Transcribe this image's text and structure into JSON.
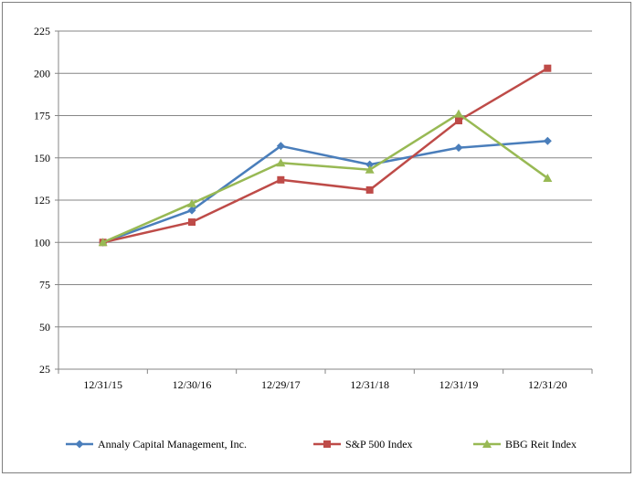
{
  "chart_data": {
    "type": "line",
    "title": "",
    "xlabel": "",
    "ylabel": "",
    "categories": [
      "12/31/15",
      "12/30/16",
      "12/29/17",
      "12/31/18",
      "12/31/19",
      "12/31/20"
    ],
    "ylim": [
      25,
      225
    ],
    "yticks": [
      25,
      50,
      75,
      100,
      125,
      150,
      175,
      200,
      225
    ],
    "grid": true,
    "legend_position": "bottom",
    "series": [
      {
        "name": "Annaly Capital Management, Inc.",
        "color": "#4a7ebb",
        "marker": "diamond",
        "values": [
          100,
          119,
          157,
          146,
          156,
          160
        ]
      },
      {
        "name": "S&P 500 Index",
        "color": "#be4b48",
        "marker": "square",
        "values": [
          100,
          112,
          137,
          131,
          172,
          203
        ]
      },
      {
        "name": "BBG Reit Index",
        "color": "#98b954",
        "marker": "triangle",
        "values": [
          100,
          123,
          147,
          143,
          176,
          138
        ]
      }
    ]
  }
}
